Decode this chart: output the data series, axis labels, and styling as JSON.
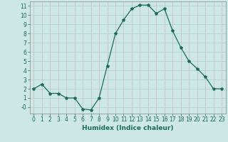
{
  "xlabel": "Humidex (Indice chaleur)",
  "x": [
    0,
    1,
    2,
    3,
    4,
    5,
    6,
    7,
    8,
    9,
    10,
    11,
    12,
    13,
    14,
    15,
    16,
    17,
    18,
    19,
    20,
    21,
    22,
    23
  ],
  "y": [
    2.0,
    2.5,
    1.5,
    1.5,
    1.0,
    1.0,
    -0.2,
    -0.3,
    1.0,
    4.5,
    8.0,
    9.5,
    10.7,
    11.1,
    11.1,
    10.2,
    10.7,
    8.3,
    6.5,
    5.0,
    4.2,
    3.3,
    2.0,
    2.0
  ],
  "line_color": "#1a6b5a",
  "marker": "*",
  "marker_size": 3,
  "bg_color": "#cde8e4",
  "grid_color": "#a8cfc9",
  "ylim": [
    -0.7,
    11.5
  ],
  "xlim": [
    -0.5,
    23.5
  ],
  "yticks": [
    0,
    1,
    2,
    3,
    4,
    5,
    6,
    7,
    8,
    9,
    10,
    11
  ],
  "ytick_labels": [
    "-0",
    "1",
    "2",
    "3",
    "4",
    "5",
    "6",
    "7",
    "8",
    "9",
    "10",
    "11"
  ],
  "xticks": [
    0,
    1,
    2,
    3,
    4,
    5,
    6,
    7,
    8,
    9,
    10,
    11,
    12,
    13,
    14,
    15,
    16,
    17,
    18,
    19,
    20,
    21,
    22,
    23
  ],
  "tick_fontsize": 5.5,
  "label_fontsize": 6.5,
  "line_width": 0.9
}
